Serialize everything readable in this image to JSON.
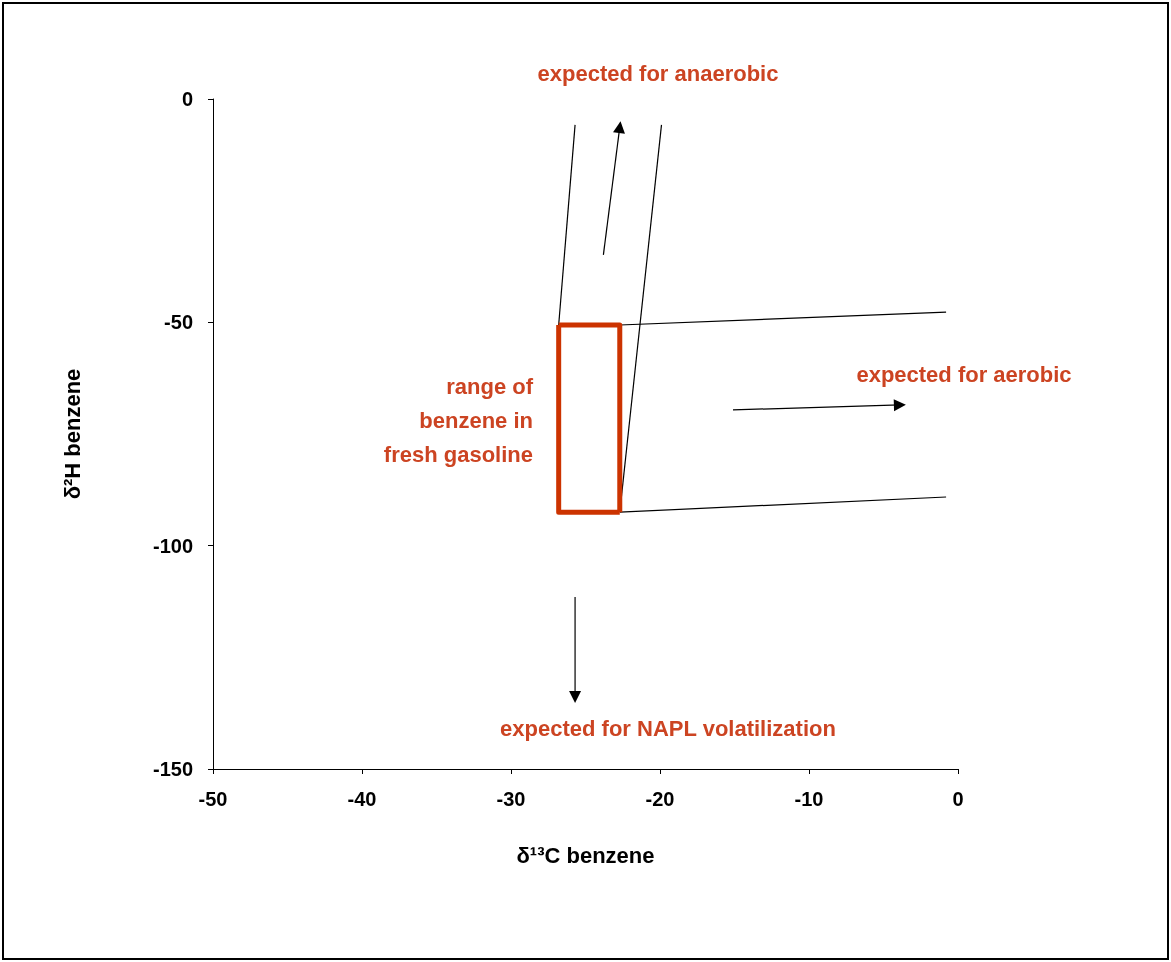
{
  "chart_data": {
    "type": "line",
    "xlabel": "δ¹³C benzene",
    "ylabel": "δ²H benzene",
    "xlim": [
      -50,
      0
    ],
    "xticks": [
      -50,
      -40,
      -30,
      -20,
      -10,
      0
    ],
    "ylim": [
      -150,
      0
    ],
    "yticks": [
      -150,
      -100,
      -50,
      0
    ],
    "series": [
      {
        "color": "#000000",
        "marker": "none",
        "x": [
          -26.8,
          -25.7
        ],
        "values": [
          -50.6,
          -5.8
        ]
      },
      {
        "color": "#000000",
        "marker": "none",
        "x": [
          -22.7,
          -19.9
        ],
        "values": [
          -92.5,
          -5.8
        ]
      },
      {
        "color": "#000000",
        "marker": "none",
        "x": [
          -22.7,
          -0.8
        ],
        "values": [
          -50.6,
          -47.7
        ]
      },
      {
        "color": "#000000",
        "marker": "none",
        "x": [
          -22.7,
          -0.8
        ],
        "values": [
          -92.5,
          -89.1
        ]
      },
      {
        "color": "#cc3300",
        "marker": "none",
        "x": [
          -26.8,
          -22.7,
          -22.7
        ],
        "values": [
          -50.6,
          -50.6,
          -92.5
        ]
      },
      {
        "color": "#cc3300",
        "marker": "none",
        "x": [
          -22.7,
          -26.8,
          -26.8
        ],
        "values": [
          -92.5,
          -92.5,
          -50.6
        ]
      },
      {
        "color": "#000000",
        "marker": "triangle",
        "x": [
          -23.8,
          -22.7
        ],
        "values": [
          -34.9,
          -6.3
        ]
      },
      {
        "color": "#000000",
        "marker": "triangle",
        "x": [
          -15.1,
          -3.9
        ],
        "values": [
          -69.6,
          -68.5
        ]
      },
      {
        "color": "#000000",
        "marker": "triangle",
        "x": [
          -25.7,
          -25.7
        ],
        "values": [
          -111.5,
          -133.9
        ]
      }
    ],
    "annotations": [
      "expected for anaerobic",
      "range of\nbenzene in\nfresh gasoline",
      "expected for aerobic",
      "expected for NAPL volatilization"
    ]
  }
}
